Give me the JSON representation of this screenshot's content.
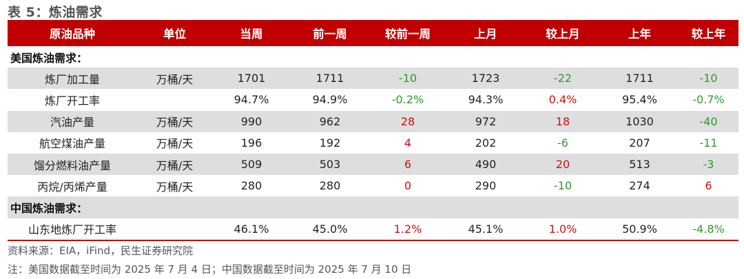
{
  "title": "表 5：炼油需求",
  "headers": [
    "原油品种",
    "单位",
    "当周",
    "前一周",
    "较前一周",
    "上月",
    "较上月",
    "上年",
    "较上年"
  ],
  "sections": [
    {
      "label": "美国炼油需求：",
      "rows": [
        {
          "name": "炼厂加工量",
          "unit": "万桶/天",
          "cur": "1701",
          "prev": "1711",
          "chg_w": "-10",
          "month": "1723",
          "chg_m": "-22",
          "year": "1711",
          "chg_y": "-10"
        },
        {
          "name": "炼厂开工率",
          "unit": "",
          "cur": "94.7%",
          "prev": "94.9%",
          "chg_w": "-0.2%",
          "month": "94.3%",
          "chg_m": "0.4%",
          "year": "95.4%",
          "chg_y": "-0.7%"
        },
        {
          "name": "汽油产量",
          "unit": "万桶/天",
          "cur": "990",
          "prev": "962",
          "chg_w": "28",
          "month": "972",
          "chg_m": "18",
          "year": "1030",
          "chg_y": "-40"
        },
        {
          "name": "航空煤油产量",
          "unit": "万桶/天",
          "cur": "196",
          "prev": "192",
          "chg_w": "4",
          "month": "202",
          "chg_m": "-6",
          "year": "207",
          "chg_y": "-11"
        },
        {
          "name": "馏分燃料油产量",
          "unit": "万桶/天",
          "cur": "509",
          "prev": "503",
          "chg_w": "6",
          "month": "490",
          "chg_m": "20",
          "year": "513",
          "chg_y": "-3"
        },
        {
          "name": "丙烷/丙烯产量",
          "unit": "万桶/天",
          "cur": "280",
          "prev": "280",
          "chg_w": "0",
          "month": "290",
          "chg_m": "-10",
          "year": "274",
          "chg_y": "6"
        }
      ]
    },
    {
      "label": "中国炼油需求：",
      "rows": [
        {
          "name": "山东地炼厂开工率",
          "unit": "",
          "cur": "46.1%",
          "prev": "45.0%",
          "chg_w": "1.2%",
          "month": "45.1%",
          "chg_m": "1.0%",
          "year": "50.9%",
          "chg_y": "-4.8%"
        }
      ]
    }
  ],
  "source": "资料来源：EIA，iFind，民生证券研究院",
  "note": "注：美国数据截至时间为 2025 年 7 月 4 日；中国数据截至时间为 2025 年 7 月 10 日",
  "colors": {
    "header_bg": "#c00000",
    "positive": "#d01010",
    "negative": "#2a9d2a",
    "shaded": "#dedede"
  }
}
